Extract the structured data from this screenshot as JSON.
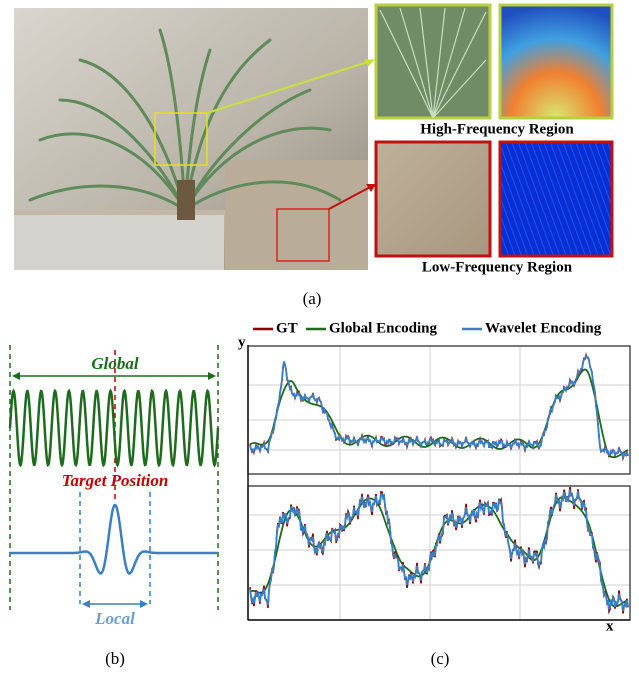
{
  "figure": {
    "panel_a": {
      "high_label": "High-Frequency Region",
      "low_label": "Low-Frequency Region",
      "caption": "(a)"
    },
    "panel_b": {
      "global_label": "Global",
      "target_label": "Target Position",
      "local_label": "Local",
      "caption": "(b)"
    },
    "panel_c": {
      "legend": [
        "GT",
        "Global Encoding",
        "Wavelet Encoding"
      ],
      "y_label": "y",
      "x_label": "x",
      "caption": "(c)"
    }
  }
}
